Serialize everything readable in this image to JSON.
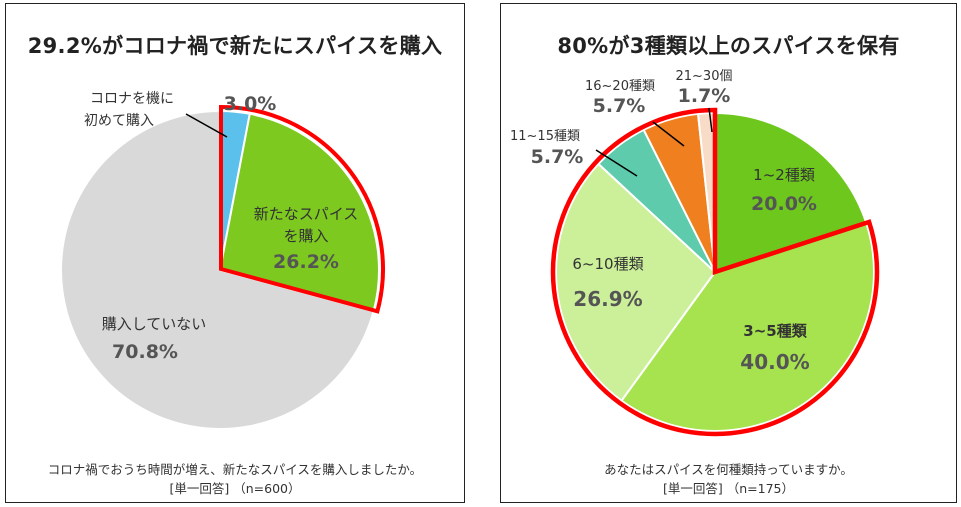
{
  "chart_data": [
    {
      "type": "pie",
      "title": "29.2%がコロナ禍で新たにスパイスを購入",
      "question": "コロナ禍でおうち時間が増え、新たなスパイスを購入しましたか。",
      "base": "[単一回答] （n=600）",
      "slices": [
        {
          "name": "コロナを機に初めて購入",
          "name_lines": [
            "コロナを機に",
            "初めて購入"
          ],
          "value": 3.0,
          "label": "3.0%",
          "color": "#5bc0eb"
        },
        {
          "name": "新たなスパイスを購入",
          "name_lines": [
            "新たなスパイス",
            "を購入"
          ],
          "value": 26.2,
          "label": "26.2%",
          "color": "#7dc920"
        },
        {
          "name": "購入していない",
          "name_lines": [
            "購入していない"
          ],
          "value": 70.8,
          "label": "70.8%",
          "color": "#d9d9d9"
        }
      ],
      "highlight": "購入者 (3.0% + 26.2%)",
      "highlight_color": "#ff0000"
    },
    {
      "type": "pie",
      "title": "80%が3種類以上のスパイスを保有",
      "question": "あなたはスパイスを何種類持っていますか。",
      "base": "[単一回答] （n=175）",
      "slices": [
        {
          "name": "1~2種類",
          "value": 20.0,
          "label": "20.0%",
          "color": "#6dc71c"
        },
        {
          "name": "3~5種類",
          "value": 40.0,
          "label": "40.0%",
          "color": "#a6e34e"
        },
        {
          "name": "6~10種類",
          "value": 26.9,
          "label": "26.9%",
          "color": "#ccf09a"
        },
        {
          "name": "11~15種類",
          "value": 5.7,
          "label": "5.7%",
          "color": "#5ecbad"
        },
        {
          "name": "16~20種類",
          "value": 5.7,
          "label": "5.7%",
          "color": "#f07f1f"
        },
        {
          "name": "21~30個",
          "value": 1.7,
          "label": "1.7%",
          "color": "#f8dcc8"
        }
      ],
      "highlight": "3種類以上",
      "highlight_color": "#ff0000"
    }
  ]
}
